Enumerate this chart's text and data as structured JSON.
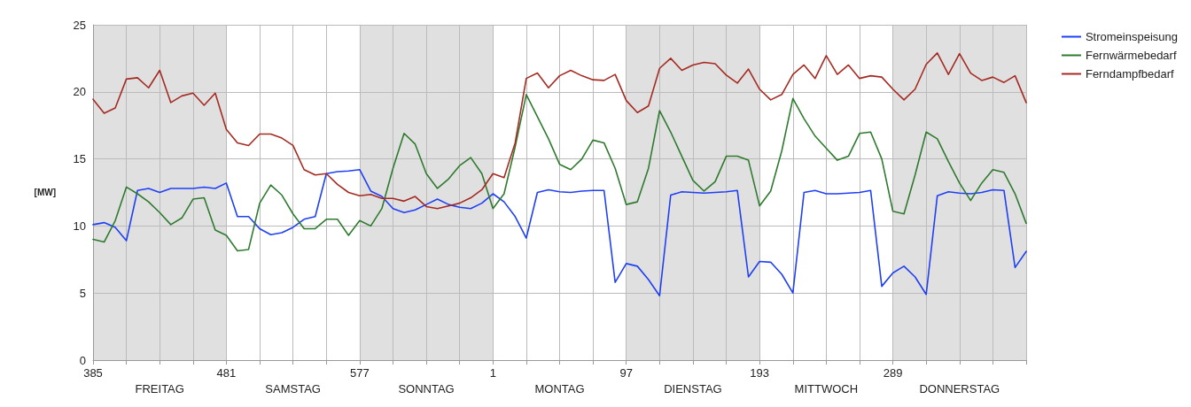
{
  "chart_data": {
    "type": "line",
    "ylabel": "[MW]",
    "categories": [
      "385",
      null,
      null,
      null,
      null,
      null,
      null,
      null,
      null,
      null,
      null,
      null,
      "481",
      null,
      null,
      null,
      null,
      null,
      null,
      null,
      null,
      null,
      null,
      null,
      "577",
      null,
      null,
      null,
      null,
      null,
      null,
      null,
      null,
      null,
      null,
      null,
      "1",
      null,
      null,
      null,
      null,
      null,
      null,
      null,
      null,
      null,
      null,
      null,
      "97",
      null,
      null,
      null,
      null,
      null,
      null,
      null,
      null,
      null,
      null,
      null,
      "193",
      null,
      null,
      null,
      null,
      null,
      null,
      null,
      null,
      null,
      null,
      null,
      "289",
      null,
      null,
      null,
      null,
      null,
      null,
      null,
      null,
      null,
      null,
      null,
      null
    ],
    "ylim": [
      0,
      25
    ],
    "yticks": [
      0,
      5,
      10,
      15,
      20,
      25
    ],
    "grid": true,
    "legend": "top right",
    "marker": "none",
    "line_style": "solid",
    "annotations": [
      "FREITAG",
      "SAMSTAG",
      "SONNTAG",
      "MONTAG",
      "DIENSTAG",
      "MITTWOCH",
      "DONNERSTAG"
    ],
    "bands": [
      {
        "axis": "x",
        "from": "481",
        "to": "577",
        "color": "#ffffff"
      },
      {
        "axis": "x",
        "from": "1",
        "to": "97",
        "color": "#ffffff"
      },
      {
        "axis": "x",
        "from": "193",
        "to": "289",
        "color": "#ffffff"
      }
    ],
    "series": [
      {
        "name": "Stromeinspeisung",
        "color": "#1f3ff5",
        "values": [
          10.1,
          10.25,
          9.9,
          8.9,
          12.65,
          12.8,
          12.5,
          12.8,
          12.8,
          12.8,
          12.9,
          12.8,
          13.2,
          10.7,
          10.7,
          9.8,
          9.35,
          9.5,
          9.9,
          10.5,
          10.7,
          13.9,
          14.05,
          14.1,
          14.2,
          12.6,
          12.2,
          11.3,
          11.0,
          11.2,
          11.6,
          12.0,
          11.6,
          11.4,
          11.3,
          11.7,
          12.4,
          11.8,
          10.7,
          9.1,
          12.5,
          12.7,
          12.55,
          12.5,
          12.6,
          12.65,
          12.65,
          5.8,
          7.2,
          7.0,
          6.0,
          4.8,
          12.3,
          12.55,
          12.5,
          12.45,
          12.5,
          12.55,
          12.65,
          6.2,
          7.35,
          7.3,
          6.4,
          5.0,
          12.5,
          12.65,
          12.4,
          12.4,
          12.45,
          12.5,
          12.65,
          5.5,
          6.5,
          7.0,
          6.2,
          4.9,
          12.25,
          12.55,
          12.45,
          12.4,
          12.5,
          12.7,
          12.65,
          6.9,
          8.1
        ]
      },
      {
        "name": "Fernwärmebedarf",
        "color": "#2e7a2e",
        "values": [
          9.0,
          8.8,
          10.4,
          12.9,
          12.4,
          11.8,
          11.0,
          10.1,
          10.6,
          12.0,
          12.1,
          9.7,
          9.3,
          8.15,
          8.25,
          11.7,
          13.05,
          12.3,
          10.9,
          9.8,
          9.8,
          10.5,
          10.5,
          9.3,
          10.4,
          10.0,
          11.3,
          14.3,
          16.9,
          16.1,
          13.9,
          12.8,
          13.5,
          14.5,
          15.1,
          13.9,
          11.3,
          12.4,
          15.9,
          19.8,
          18.15,
          16.5,
          14.6,
          14.2,
          15.0,
          16.4,
          16.2,
          14.3,
          11.6,
          11.8,
          14.3,
          18.6,
          17.0,
          15.2,
          13.4,
          12.6,
          13.3,
          15.2,
          15.2,
          14.9,
          11.5,
          12.6,
          15.6,
          19.5,
          18.0,
          16.7,
          15.8,
          14.9,
          15.2,
          16.9,
          17.0,
          15.0,
          11.1,
          10.9,
          13.8,
          17.0,
          16.5,
          14.8,
          13.2,
          11.9,
          13.2,
          14.2,
          14.0,
          12.4,
          10.2
        ]
      },
      {
        "name": "Ferndampfbedarf",
        "color": "#a52a22",
        "values": [
          19.45,
          18.4,
          18.8,
          20.95,
          21.05,
          20.3,
          21.6,
          19.2,
          19.7,
          19.9,
          19.0,
          19.9,
          17.2,
          16.2,
          16.0,
          16.85,
          16.85,
          16.55,
          16.0,
          14.2,
          13.8,
          13.9,
          13.1,
          12.5,
          12.25,
          12.35,
          12.05,
          12.05,
          11.85,
          12.2,
          11.45,
          11.3,
          11.5,
          11.7,
          12.1,
          12.7,
          13.9,
          13.6,
          16.2,
          21.0,
          21.4,
          20.3,
          21.2,
          21.6,
          21.2,
          20.9,
          20.85,
          21.3,
          19.35,
          18.45,
          18.95,
          21.75,
          22.5,
          21.6,
          22.0,
          22.2,
          22.1,
          21.25,
          20.65,
          21.7,
          20.2,
          19.4,
          19.8,
          21.3,
          22.0,
          21.0,
          22.7,
          21.3,
          22.0,
          21.0,
          21.2,
          21.1,
          20.2,
          19.4,
          20.2,
          22.05,
          22.9,
          21.3,
          22.85,
          21.4,
          20.85,
          21.1,
          20.7,
          21.2,
          19.2
        ]
      }
    ]
  }
}
